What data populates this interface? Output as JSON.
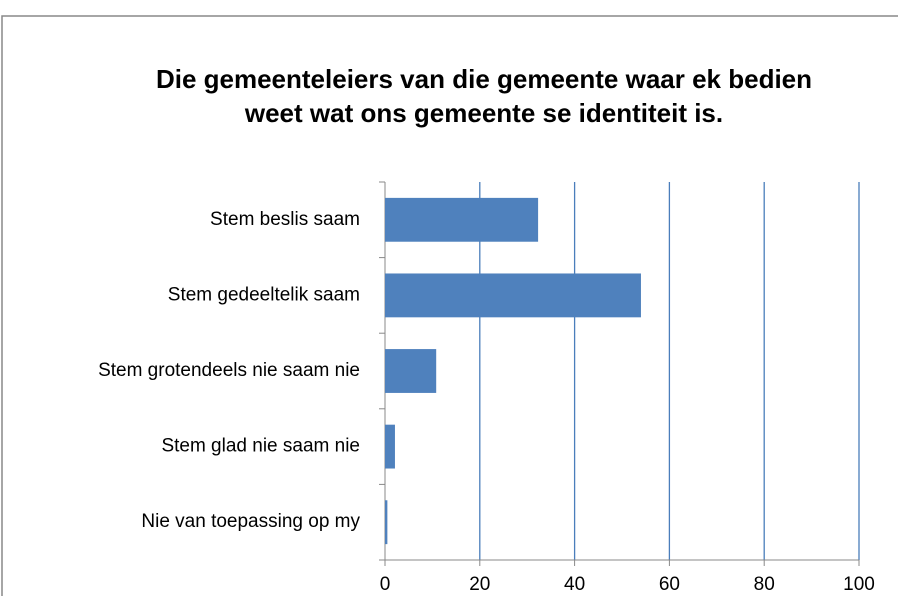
{
  "chart_data": {
    "type": "bar",
    "orientation": "horizontal",
    "title": "Die gemeenteleiers van die gemeente waar ek bedien weet wat ons gemeente se identiteit is.",
    "categories": [
      "Stem beslis saam",
      "Stem gedeeltelik saam",
      "Stem grotendeels nie saam nie",
      "Stem glad nie saam nie",
      "Nie van toepassing op my"
    ],
    "values": [
      32.3,
      54.0,
      10.8,
      2.1,
      0.5
    ],
    "color": "#4f81bd",
    "xlim": [
      0,
      100
    ],
    "xticks": [
      0,
      20,
      40,
      60,
      80,
      100
    ],
    "grid": true,
    "grid_color": "#4a7ebb"
  }
}
